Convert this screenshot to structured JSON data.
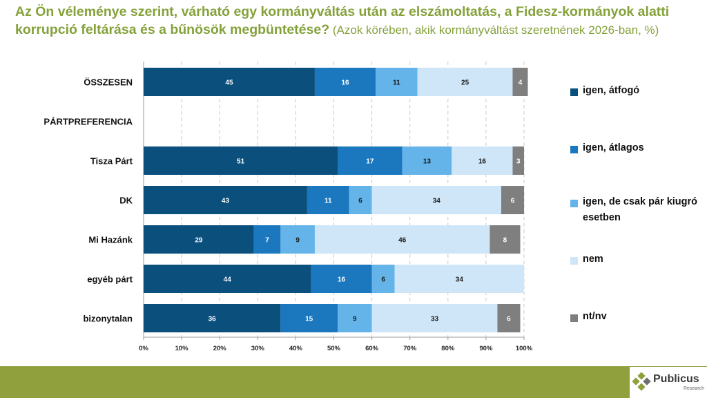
{
  "title": {
    "main": "Az Ön véleménye szerint, várható egy kormányváltás után az elszámoltatás, a Fidesz-kormányok alatti korrupció feltárása és a bűnösök megbüntetése?",
    "sub": " (Azok körében, akik kormányváltást szeretnének 2026-ban, %)"
  },
  "colors": {
    "title": "#84A13A",
    "series": [
      "#0B4F7D",
      "#1B78BE",
      "#64B4EA",
      "#CFE6F8",
      "#7F7F7F"
    ],
    "footer": "#8FA03D"
  },
  "chart_data": {
    "type": "bar",
    "orientation": "horizontal",
    "stacked": true,
    "title": "Az Ön véleménye szerint, várható egy kormányváltás után az elszámoltatás, a Fidesz-kormányok alatti korrupció feltárása és a bűnösök megbüntetése? (Azok körében, akik kormányváltást szeretnének 2026-ban, %)",
    "categories": [
      "ÖSSZESEN",
      "PÁRTPREFERENCIA",
      "Tisza Párt",
      "DK",
      "Mi Hazánk",
      "egyéb párt",
      "bizonytalan"
    ],
    "series": [
      {
        "name": "igen, átfogó",
        "values": [
          45,
          null,
          51,
          43,
          29,
          44,
          36
        ]
      },
      {
        "name": "igen, átlagos",
        "values": [
          16,
          null,
          17,
          11,
          7,
          16,
          15
        ]
      },
      {
        "name": "igen, de csak pár kiugró esetben",
        "values": [
          11,
          null,
          13,
          6,
          9,
          6,
          9
        ]
      },
      {
        "name": "nem",
        "values": [
          25,
          null,
          16,
          34,
          46,
          34,
          33
        ]
      },
      {
        "name": "nt/nv",
        "values": [
          4,
          null,
          3,
          6,
          8,
          0,
          6
        ]
      }
    ],
    "xlim": [
      0,
      100
    ],
    "xticks": [
      "0%",
      "10%",
      "20%",
      "30%",
      "40%",
      "50%",
      "60%",
      "70%",
      "80%",
      "90%",
      "100%"
    ],
    "grid": "vertical dashed",
    "legend": "right"
  },
  "legend": {
    "items": [
      "igen, átfogó",
      "igen, átlagos",
      "igen, de csak pár kiugró esetben",
      "nem",
      "nt/nv"
    ]
  },
  "logo": {
    "name": "Publicus",
    "sub": "Research"
  }
}
